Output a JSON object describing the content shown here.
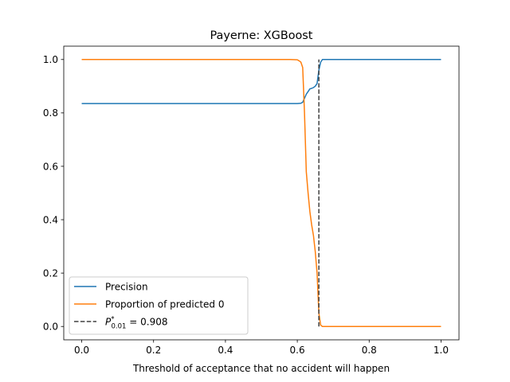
{
  "chart_data": {
    "type": "line",
    "title": "Payerne: XGBoost",
    "xlabel": "Threshold of acceptance that no accident will happen",
    "ylabel": "",
    "xlim": [
      -0.05,
      1.05
    ],
    "ylim": [
      -0.05,
      1.05
    ],
    "xticks": [
      0.0,
      0.2,
      0.4,
      0.6,
      0.8,
      1.0
    ],
    "xtick_labels": [
      "0.0",
      "0.2",
      "0.4",
      "0.6",
      "0.8",
      "1.0"
    ],
    "yticks": [
      0.0,
      0.2,
      0.4,
      0.6,
      0.8,
      1.0
    ],
    "ytick_labels": [
      "0.0",
      "0.2",
      "0.4",
      "0.6",
      "0.8",
      "1.0"
    ],
    "grid": false,
    "legend_position": "lower-left",
    "series": [
      {
        "name": "Precision",
        "color": "#1f77b4",
        "style": "solid",
        "x": [
          0.0,
          0.1,
          0.2,
          0.3,
          0.4,
          0.5,
          0.6,
          0.61,
          0.615,
          0.62,
          0.625,
          0.63,
          0.635,
          0.64,
          0.645,
          0.65,
          0.655,
          0.66,
          0.665,
          0.67,
          0.68,
          0.7,
          0.8,
          0.9,
          1.0
        ],
        "y": [
          0.835,
          0.835,
          0.835,
          0.835,
          0.835,
          0.835,
          0.835,
          0.836,
          0.84,
          0.855,
          0.87,
          0.88,
          0.89,
          0.892,
          0.895,
          0.9,
          0.91,
          0.96,
          0.99,
          1.0,
          1.0,
          1.0,
          1.0,
          1.0,
          1.0
        ]
      },
      {
        "name": "Proportion of predicted 0",
        "color": "#ff7f0e",
        "style": "solid",
        "x": [
          0.0,
          0.1,
          0.2,
          0.3,
          0.4,
          0.5,
          0.58,
          0.6,
          0.605,
          0.61,
          0.615,
          0.62,
          0.625,
          0.63,
          0.635,
          0.64,
          0.645,
          0.65,
          0.655,
          0.66,
          0.665,
          0.67,
          0.7,
          0.8,
          0.9,
          1.0
        ],
        "y": [
          1.0,
          1.0,
          1.0,
          1.0,
          1.0,
          1.0,
          1.0,
          0.999,
          0.995,
          0.99,
          0.97,
          0.8,
          0.58,
          0.5,
          0.43,
          0.38,
          0.34,
          0.28,
          0.2,
          0.05,
          0.005,
          0.0,
          0.0,
          0.0,
          0.0,
          0.0
        ]
      }
    ],
    "vline": {
      "label_prefix": "P",
      "label_sup": "*",
      "label_sub": "0.01",
      "label_suffix": " = 0.908",
      "x": 0.66,
      "ymin": 0.0,
      "ymax": 1.0,
      "color": "#404040",
      "style": "dashed"
    }
  }
}
